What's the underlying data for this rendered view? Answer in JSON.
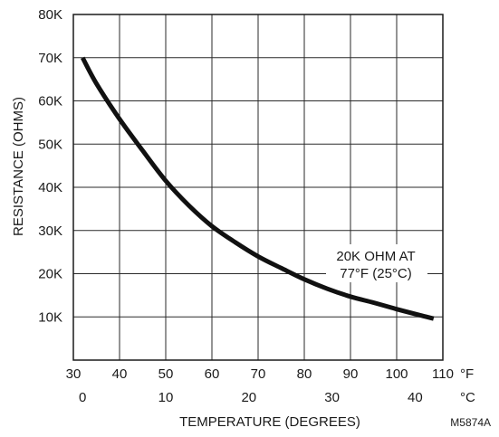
{
  "chart_data": {
    "type": "line",
    "title": "",
    "xlabel": "TEMPERATURE (DEGREES)",
    "ylabel": "RESISTANCE (OHMS)",
    "x_unit_primary": "°F",
    "x_unit_secondary": "°C",
    "xlim": [
      30,
      110
    ],
    "ylim": [
      0,
      80000
    ],
    "grid": true,
    "x_ticks_f": [
      "30",
      "40",
      "50",
      "60",
      "70",
      "80",
      "90",
      "100",
      "110"
    ],
    "x_ticks_c": [
      {
        "label": "0",
        "value": 0
      },
      {
        "label": "10",
        "value": 10
      },
      {
        "label": "20",
        "value": 20
      },
      {
        "label": "30",
        "value": 30
      },
      {
        "label": "40",
        "value": 40
      }
    ],
    "y_ticks": [
      {
        "label": "10K",
        "value": 10000
      },
      {
        "label": "20K",
        "value": 20000
      },
      {
        "label": "30K",
        "value": 30000
      },
      {
        "label": "40K",
        "value": 40000
      },
      {
        "label": "50K",
        "value": 50000
      },
      {
        "label": "60K",
        "value": 60000
      },
      {
        "label": "70K",
        "value": 70000
      },
      {
        "label": "80K",
        "value": 80000
      }
    ],
    "series": [
      {
        "points": [
          {
            "x": 32,
            "y": 70000
          },
          {
            "x": 35,
            "y": 64000
          },
          {
            "x": 40,
            "y": 55800
          },
          {
            "x": 45,
            "y": 48500
          },
          {
            "x": 50,
            "y": 41500
          },
          {
            "x": 55,
            "y": 35800
          },
          {
            "x": 60,
            "y": 31000
          },
          {
            "x": 65,
            "y": 27300
          },
          {
            "x": 70,
            "y": 24000
          },
          {
            "x": 75,
            "y": 21300
          },
          {
            "x": 80,
            "y": 18700
          },
          {
            "x": 85,
            "y": 16500
          },
          {
            "x": 90,
            "y": 14700
          },
          {
            "x": 95,
            "y": 13300
          },
          {
            "x": 100,
            "y": 11800
          },
          {
            "x": 105,
            "y": 10400
          },
          {
            "x": 108,
            "y": 9600
          }
        ]
      }
    ],
    "annotation": {
      "line1": "20K OHM AT",
      "line2": "77°F (25°C)"
    },
    "figure_code": "M5874A"
  }
}
